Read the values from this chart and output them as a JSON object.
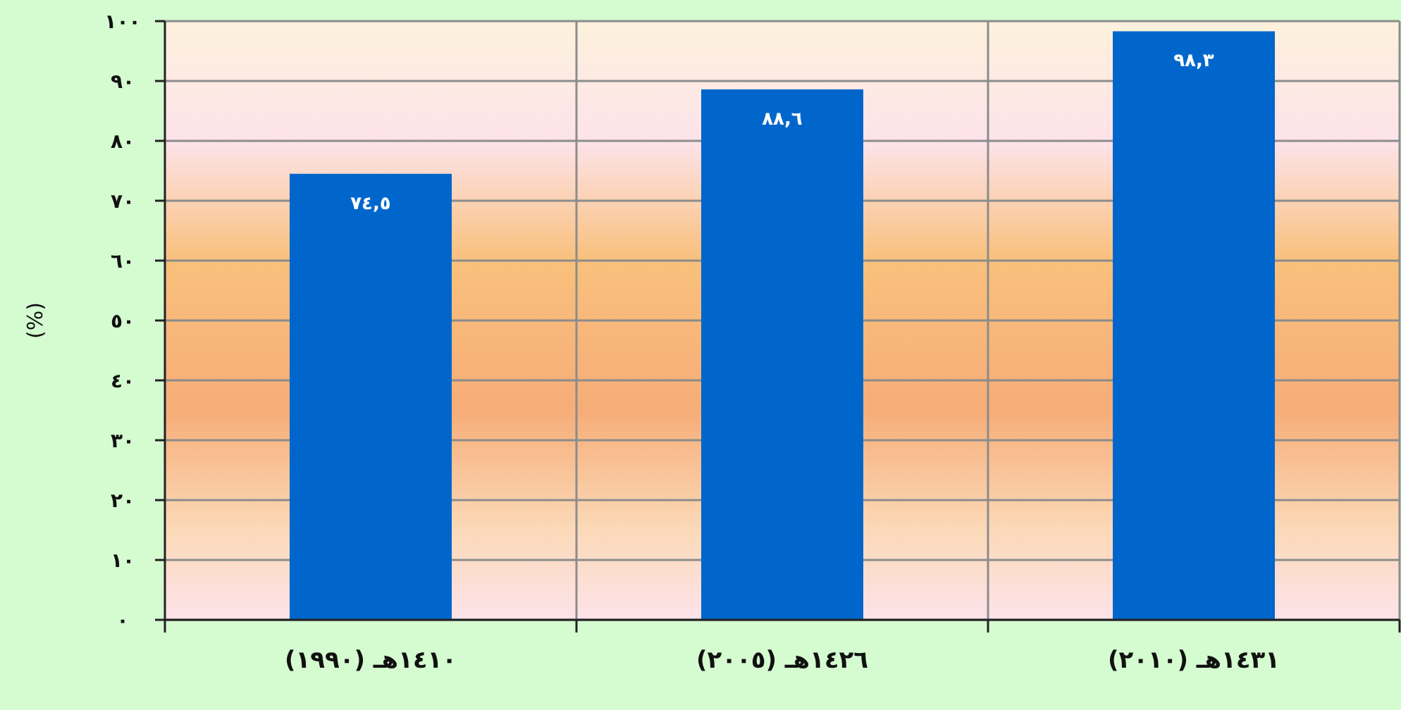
{
  "chart_data": {
    "type": "bar",
    "ylabel": "(%)",
    "categories": [
      "١٤١٠هـ (١٩٩٠)",
      "١٤٢٦هـ (٢٠٠٥)",
      "١٤٣١هـ (٢٠١٠)"
    ],
    "values": [
      74.5,
      88.6,
      98.3
    ],
    "color": "#0066cc",
    "value_labels": [
      "٧٤,٥",
      "٨٨,٦",
      "٩٨,٣"
    ],
    "ylim": [
      0,
      100
    ],
    "yticks": [
      {
        "value": 0,
        "label": "٠"
      },
      {
        "value": 10,
        "label": "١٠"
      },
      {
        "value": 20,
        "label": "٢٠"
      },
      {
        "value": 30,
        "label": "٣٠"
      },
      {
        "value": 40,
        "label": "٤٠"
      },
      {
        "value": 50,
        "label": "٥٠"
      },
      {
        "value": 60,
        "label": "٦٠"
      },
      {
        "value": 70,
        "label": "٧٠"
      },
      {
        "value": 80,
        "label": "٨٠"
      },
      {
        "value": 90,
        "label": "٩٠"
      },
      {
        "value": 100,
        "label": "١٠٠"
      }
    ],
    "grid": true
  }
}
